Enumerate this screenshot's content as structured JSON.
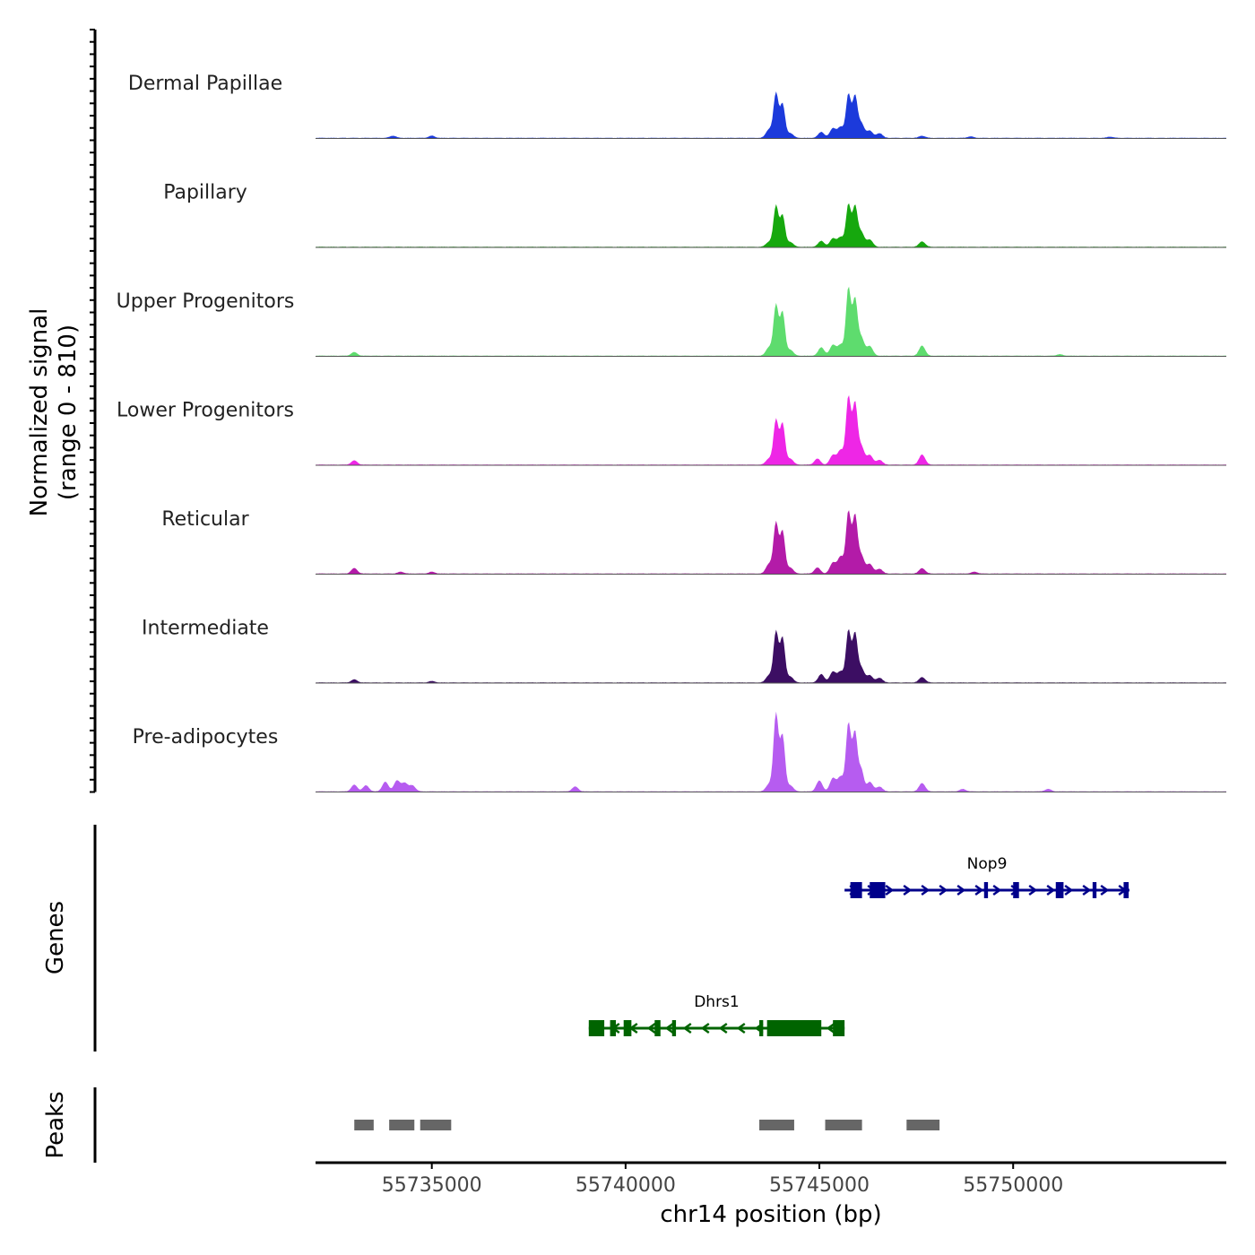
{
  "chart_data": {
    "type": "area",
    "title": "",
    "xlabel": "chr14 position (bp)",
    "x_range": [
      55732000,
      55755500
    ],
    "x_ticks": [
      {
        "value": 55735000,
        "label": "55735000"
      },
      {
        "value": 55740000,
        "label": "55740000"
      },
      {
        "value": 55745000,
        "label": "55745000"
      },
      {
        "value": 55750000,
        "label": "55750000"
      }
    ],
    "signal_panel": {
      "ylabel_line1": "Normalized signal",
      "ylabel_line2": "(range 0 - 810)",
      "ylim": [
        0,
        810
      ],
      "tracks": [
        {
          "name": "Dermal Papillae",
          "color": "#1C3ADB",
          "peaks": [
            [
              55734000,
              18
            ],
            [
              55735000,
              18
            ],
            [
              55743700,
              70
            ],
            [
              55743880,
              370
            ],
            [
              55744050,
              280
            ],
            [
              55744250,
              40
            ],
            [
              55745050,
              50
            ],
            [
              55745350,
              80
            ],
            [
              55745550,
              90
            ],
            [
              55745750,
              360
            ],
            [
              55745920,
              340
            ],
            [
              55746080,
              120
            ],
            [
              55746300,
              60
            ],
            [
              55746550,
              40
            ],
            [
              55747650,
              18
            ],
            [
              55748900,
              12
            ],
            [
              55752500,
              10
            ]
          ]
        },
        {
          "name": "Papillary",
          "color": "#16A80E",
          "peaks": [
            [
              55743700,
              40
            ],
            [
              55743880,
              340
            ],
            [
              55744050,
              260
            ],
            [
              55744250,
              40
            ],
            [
              55745050,
              50
            ],
            [
              55745350,
              70
            ],
            [
              55745550,
              80
            ],
            [
              55745750,
              350
            ],
            [
              55745920,
              330
            ],
            [
              55746080,
              120
            ],
            [
              55746300,
              60
            ],
            [
              55747650,
              45
            ]
          ]
        },
        {
          "name": "Upper Progenitors",
          "color": "#5EDC6E",
          "peaks": [
            [
              55733000,
              30
            ],
            [
              55743700,
              70
            ],
            [
              55743880,
              420
            ],
            [
              55744050,
              360
            ],
            [
              55744250,
              50
            ],
            [
              55745050,
              70
            ],
            [
              55745350,
              90
            ],
            [
              55745550,
              90
            ],
            [
              55745750,
              560
            ],
            [
              55745920,
              460
            ],
            [
              55746080,
              150
            ],
            [
              55746300,
              80
            ],
            [
              55747650,
              85
            ],
            [
              55751200,
              12
            ]
          ]
        },
        {
          "name": "Lower Progenitors",
          "color": "#EE26E6",
          "peaks": [
            [
              55733000,
              35
            ],
            [
              55743700,
              50
            ],
            [
              55743880,
              370
            ],
            [
              55744050,
              340
            ],
            [
              55744250,
              50
            ],
            [
              55744950,
              50
            ],
            [
              55745350,
              80
            ],
            [
              55745550,
              120
            ],
            [
              55745750,
              560
            ],
            [
              55745920,
              500
            ],
            [
              55746080,
              150
            ],
            [
              55746300,
              80
            ],
            [
              55746550,
              40
            ],
            [
              55747650,
              85
            ]
          ]
        },
        {
          "name": "Reticular",
          "color": "#B31BA8",
          "peaks": [
            [
              55733000,
              45
            ],
            [
              55734200,
              15
            ],
            [
              55735000,
              15
            ],
            [
              55743700,
              80
            ],
            [
              55743880,
              420
            ],
            [
              55744050,
              350
            ],
            [
              55744250,
              50
            ],
            [
              55744950,
              50
            ],
            [
              55745350,
              90
            ],
            [
              55745550,
              140
            ],
            [
              55745750,
              510
            ],
            [
              55745920,
              470
            ],
            [
              55746080,
              150
            ],
            [
              55746300,
              80
            ],
            [
              55746550,
              40
            ],
            [
              55747650,
              45
            ],
            [
              55749000,
              15
            ]
          ]
        },
        {
          "name": "Intermediate",
          "color": "#3C0E63",
          "peaks": [
            [
              55733000,
              25
            ],
            [
              55735000,
              12
            ],
            [
              55743700,
              60
            ],
            [
              55743880,
              420
            ],
            [
              55744050,
              370
            ],
            [
              55744250,
              50
            ],
            [
              55745050,
              70
            ],
            [
              55745350,
              90
            ],
            [
              55745550,
              90
            ],
            [
              55745750,
              430
            ],
            [
              55745920,
              400
            ],
            [
              55746080,
              120
            ],
            [
              55746300,
              60
            ],
            [
              55746550,
              40
            ],
            [
              55747650,
              45
            ]
          ]
        },
        {
          "name": "Pre-adipocytes",
          "color": "#B65CF0",
          "peaks": [
            [
              55733000,
              55
            ],
            [
              55733300,
              50
            ],
            [
              55733800,
              80
            ],
            [
              55734100,
              90
            ],
            [
              55734300,
              70
            ],
            [
              55734500,
              50
            ],
            [
              55738700,
              40
            ],
            [
              55743700,
              60
            ],
            [
              55743880,
              640
            ],
            [
              55744050,
              460
            ],
            [
              55744250,
              50
            ],
            [
              55745000,
              90
            ],
            [
              55745350,
              110
            ],
            [
              55745550,
              120
            ],
            [
              55745750,
              560
            ],
            [
              55745920,
              490
            ],
            [
              55746080,
              180
            ],
            [
              55746300,
              80
            ],
            [
              55746550,
              40
            ],
            [
              55747650,
              70
            ],
            [
              55748700,
              20
            ],
            [
              55750900,
              20
            ]
          ]
        }
      ]
    },
    "genes_panel": {
      "ylabel": "Genes",
      "genes": [
        {
          "name": "Nop9",
          "color": "#00008B",
          "strand": "+",
          "start": 55745650,
          "end": 55753000,
          "exons": [
            [
              55745800,
              55746100
            ],
            [
              55746300,
              55746700
            ],
            [
              55749250,
              55749350
            ],
            [
              55750000,
              55750150
            ],
            [
              55751100,
              55751300
            ],
            [
              55752050,
              55752150
            ],
            [
              55752850,
              55752980
            ]
          ]
        },
        {
          "name": "Dhrs1",
          "color": "#006400",
          "strand": "-",
          "start": 55739050,
          "end": 55745650,
          "exons": [
            [
              55739050,
              55739450
            ],
            [
              55739600,
              55739750
            ],
            [
              55739950,
              55740150
            ],
            [
              55740750,
              55740900
            ],
            [
              55741200,
              55741300
            ],
            [
              55743450,
              55743550
            ],
            [
              55743650,
              55745050
            ],
            [
              55745350,
              55745650
            ]
          ]
        }
      ]
    },
    "peaks_panel": {
      "ylabel": "Peaks",
      "color": "#666666",
      "regions": [
        [
          55733000,
          55733500
        ],
        [
          55733900,
          55734550
        ],
        [
          55734700,
          55735500
        ],
        [
          55743450,
          55744350
        ],
        [
          55745150,
          55746100
        ],
        [
          55747250,
          55748100
        ]
      ]
    }
  }
}
